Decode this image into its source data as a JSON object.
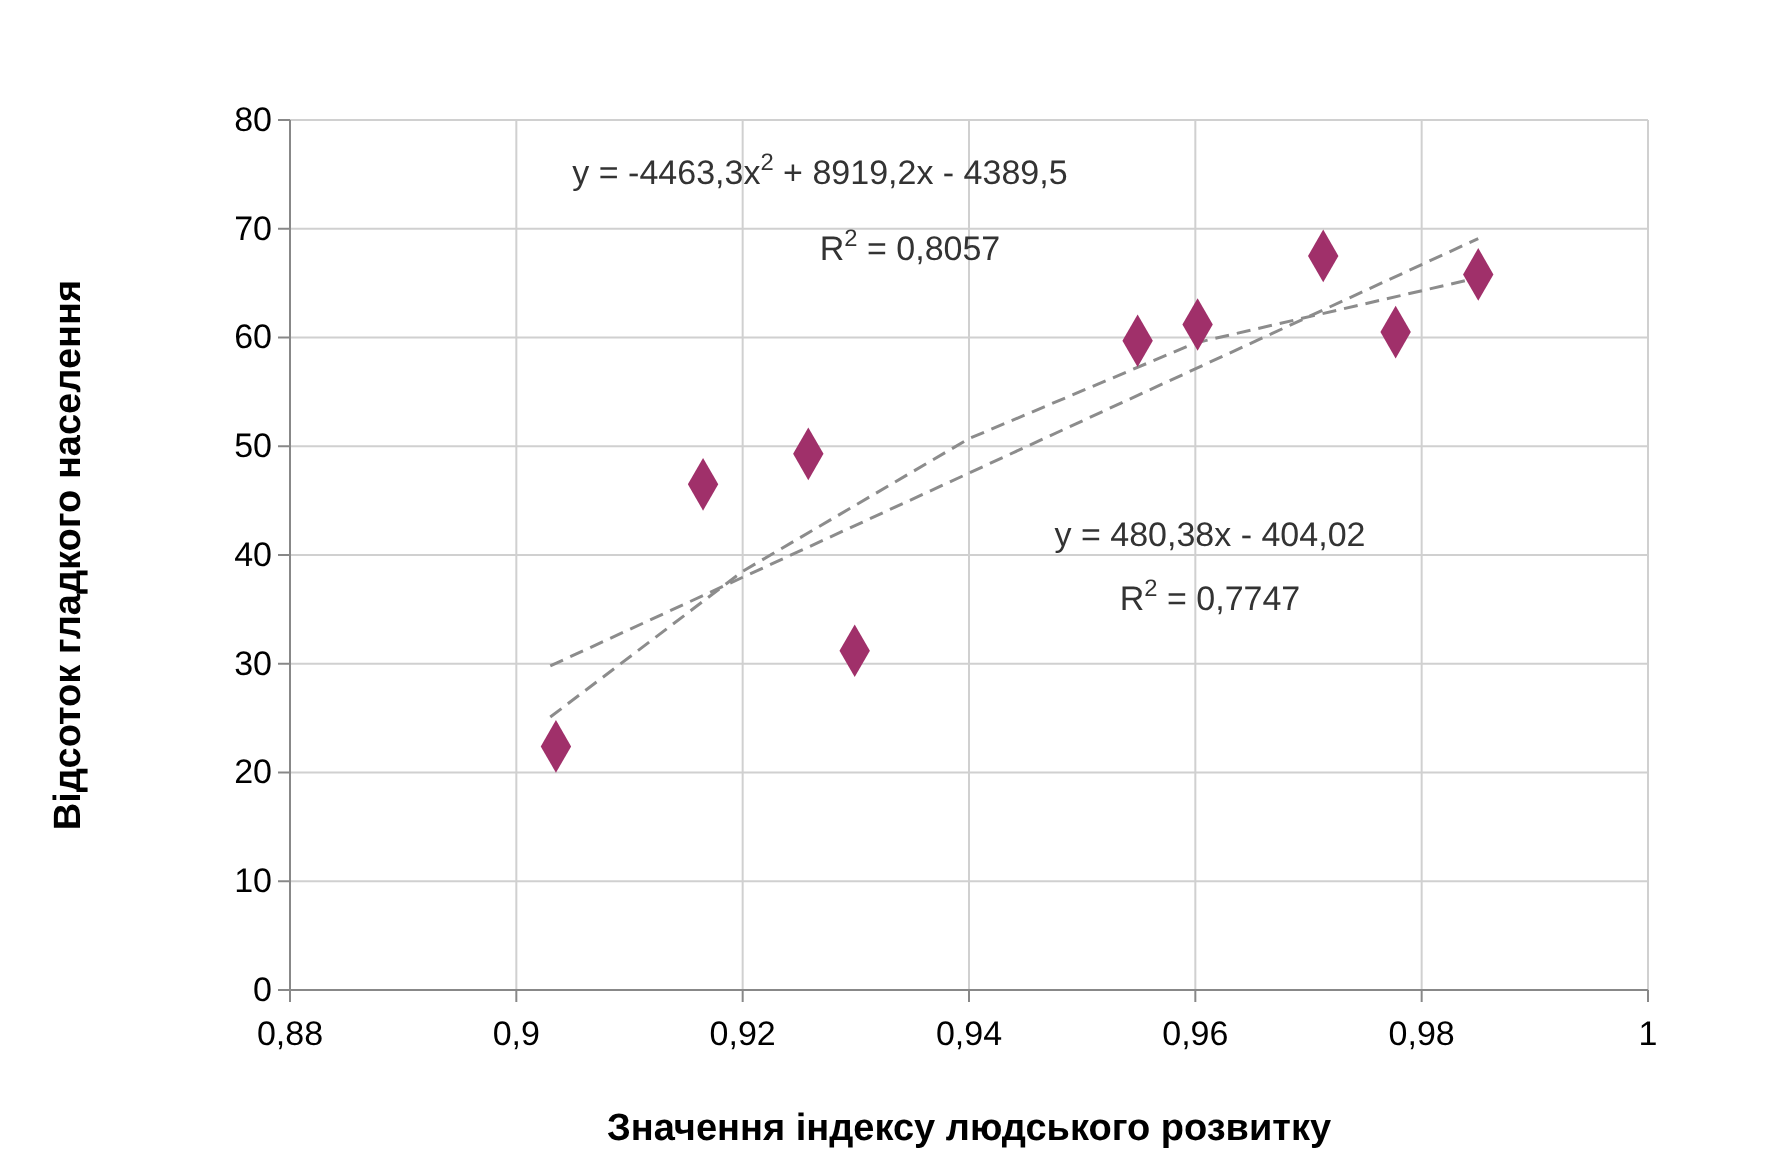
{
  "chart_data": {
    "type": "scatter",
    "xlabel": "Значення індексу людського розвитку",
    "ylabel": "Відсоток гладкого населення",
    "xlim": [
      0.88,
      1
    ],
    "xticks": [
      {
        "value": 0.88,
        "label": "0,88"
      },
      {
        "value": 0.9,
        "label": "0,9"
      },
      {
        "value": 0.92,
        "label": "0,92"
      },
      {
        "value": 0.94,
        "label": "0,94"
      },
      {
        "value": 0.96,
        "label": "0,96"
      },
      {
        "value": 0.98,
        "label": "0,98"
      },
      {
        "value": 1,
        "label": "1"
      }
    ],
    "ylim": [
      0,
      80
    ],
    "yticks": [
      0,
      10,
      20,
      30,
      40,
      50,
      60,
      70,
      80
    ],
    "grid": true,
    "marker": "diamond",
    "series": [
      {
        "color": "#a0306a",
        "x": [
          0.9035,
          0.9165,
          0.9258,
          0.9299,
          0.9549,
          0.9602,
          0.9713,
          0.9777,
          0.985
        ],
        "values": [
          22.4,
          46.5,
          49.3,
          31.2,
          59.7,
          61.2,
          67.5,
          60.5,
          65.8
        ]
      },
      {
        "type": "line",
        "color": "#8c8c8c",
        "line_style": "dashed",
        "marker": "none",
        "x": [
          0.903,
          0.92,
          0.94,
          0.96,
          0.985
        ],
        "values": [
          25.1,
          38.5,
          50.7,
          59.5,
          65.5
        ]
      },
      {
        "type": "line",
        "color": "#8c8c8c",
        "line_style": "dashed",
        "marker": "none",
        "x": [
          0.903,
          0.985
        ],
        "values": [
          29.8,
          69.1
        ]
      }
    ],
    "annotations": [
      "y = -4463,3x$^{2}$ + 8919,2x - 4389,5",
      "R$^{2}$ = 0,8057",
      "y = 480,38x - 404,02",
      "R$^{2}$ = 0,7747"
    ]
  }
}
